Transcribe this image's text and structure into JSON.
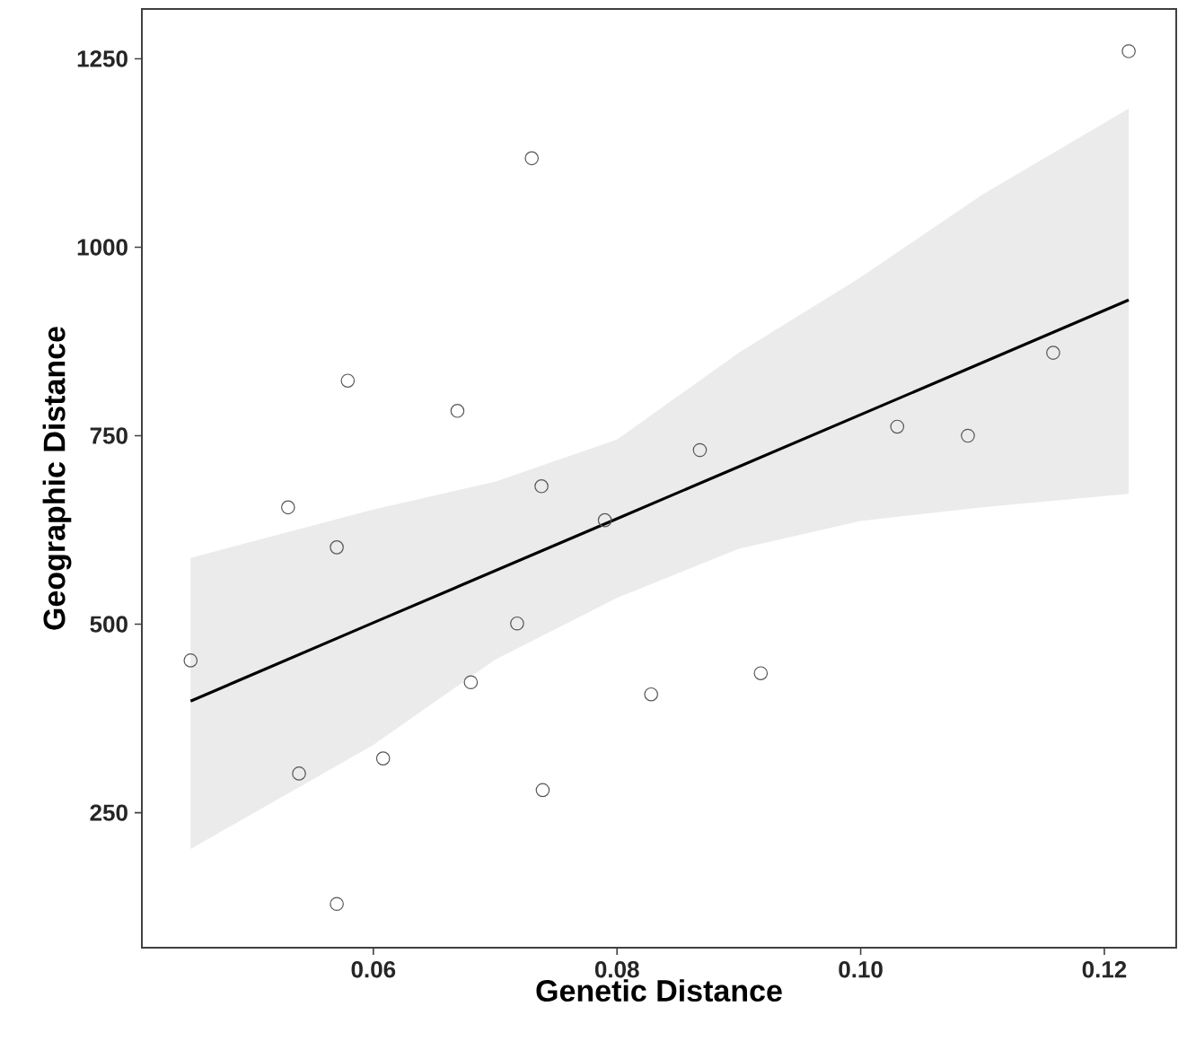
{
  "chart_data": {
    "type": "scatter",
    "xlabel": "Genetic Distance",
    "ylabel": "Geographic Distance",
    "xlim": [
      0.041,
      0.1259
    ],
    "ylim": [
      71,
      1316
    ],
    "xticks": [
      0.06,
      0.08,
      {
        "value": 0.1,
        "label": "0.10"
      },
      0.12
    ],
    "yticks": [
      250,
      500,
      750,
      1000,
      1250
    ],
    "grid": false,
    "marker": "circle",
    "series": [
      {
        "color": "#555555",
        "x": [
          0.045,
          0.053,
          0.0539,
          0.057,
          0.057,
          0.0579,
          0.0608,
          0.0669,
          0.068,
          0.0718,
          0.073,
          0.0738,
          0.0739,
          0.079,
          0.0828,
          0.0868,
          0.0918,
          0.103,
          0.1088,
          0.1158,
          0.122
        ],
        "values": [
          452,
          655,
          302,
          602,
          129,
          823,
          322,
          783,
          423,
          501,
          1118,
          683,
          280,
          638,
          407,
          731,
          435,
          762,
          750,
          860,
          1260
        ]
      },
      {
        "type": "line",
        "color": "#000000",
        "marker": "none",
        "line_style": "solid",
        "x": [
          0.045,
          0.06,
          0.07,
          0.08,
          0.09,
          0.1,
          0.11,
          0.122
        ],
        "values": [
          398,
          502,
          571,
          640,
          709,
          778,
          847,
          930
        ],
        "lower": [
          202,
          340,
          453,
          535,
          600,
          637,
          655,
          673
        ],
        "upper": [
          588,
          652,
          689,
          745,
          860,
          960,
          1070,
          1184
        ]
      }
    ]
  }
}
